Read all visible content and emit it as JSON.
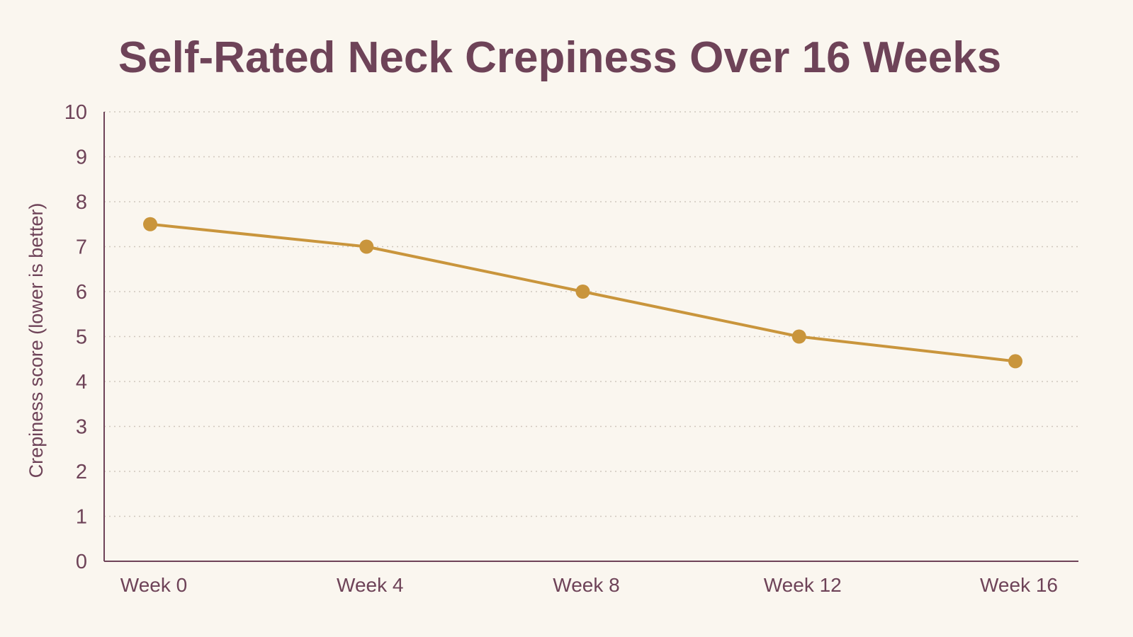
{
  "chart_data": {
    "type": "line",
    "title": "Self-Rated Neck Crepiness Over 16 Weeks",
    "xlabel": "",
    "ylabel": "Crepiness score (lower is better)",
    "categories": [
      "Week 0",
      "Week 4",
      "Week 8",
      "Week 12",
      "Week 16"
    ],
    "series": [
      {
        "values": [
          7.5,
          7.0,
          6.0,
          5.0,
          4.45
        ]
      }
    ],
    "ylim": [
      0,
      10
    ],
    "yticks": [
      "0",
      "1",
      "2",
      "3",
      "4",
      "5",
      "6",
      "7",
      "8",
      "9",
      "10"
    ],
    "grid": true,
    "grid_style": "dotted",
    "colors": {
      "line": "#c9953c",
      "marker": "#c9953c",
      "text": "#6e4358",
      "axis": "#6e4358",
      "grid": "#cfc7bd",
      "background": "#faf6ef"
    }
  }
}
